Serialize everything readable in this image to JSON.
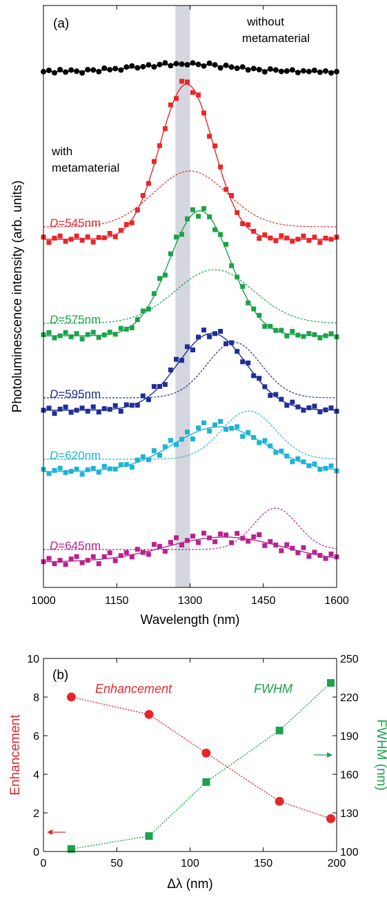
{
  "chart_data": [
    {
      "type": "scatter",
      "panel_label": "(a)",
      "xlabel": "Wavelength (nm)",
      "ylabel": "Photoluminescence intensity (arb. units)",
      "xlim": [
        1000,
        1600
      ],
      "xticks": [
        1000,
        1150,
        1300,
        1450,
        1600
      ],
      "highlight_band": [
        1270,
        1300
      ],
      "annotations": [
        "without",
        "metamaterial",
        "with",
        "metamaterial"
      ],
      "series": [
        {
          "name": "without metamaterial",
          "color": "#000000",
          "marker": "circle",
          "center": 1290,
          "width": 95,
          "peak": 0.22,
          "has_dashed": false,
          "noise_y": [
            0.0,
            0.02,
            -0.02,
            0.03,
            -0.01,
            0.02,
            0.0,
            -0.03,
            0.02,
            0.01,
            -0.02,
            0.03,
            0.0,
            0.01,
            -0.02,
            0.02,
            0.03,
            -0.01,
            0.0,
            0.02,
            -0.02,
            0.01,
            0.03,
            -0.02,
            0.01,
            0.0,
            -0.01,
            0.02,
            0.0,
            -0.02,
            0.03,
            0.01,
            -0.03,
            0.02,
            0.0,
            -0.01,
            0.02,
            -0.02,
            0.01,
            0.0,
            -0.03,
            0.02,
            0.01,
            -0.01,
            0.0,
            0.02,
            -0.02,
            0.01,
            0.0,
            0.02,
            -0.01,
            0.01,
            -0.02,
            0.0
          ]
        },
        {
          "name": "D=545nm",
          "label_prefix": "D",
          "label_value": "=545nm",
          "color": "#e8262a",
          "marker": "square",
          "center": 1293,
          "width": 55,
          "peak": 1.0,
          "dashed_center": 1300,
          "dashed_width": 75,
          "dashed_peak": 0.36,
          "has_dashed": true,
          "noise_y": [
            0.02,
            -0.03,
            0.01,
            0.03,
            -0.02,
            0.0,
            0.03,
            -0.01,
            0.02,
            -0.03,
            0.01,
            0.0,
            0.03,
            -0.02,
            0.01,
            0.02,
            -0.03,
            0.0,
            0.02,
            -0.01,
            0.03,
            0.0,
            -0.02,
            0.04,
            -0.03,
            0.05,
            0.02,
            -0.04,
            0.03,
            0.0,
            -0.05,
            0.04,
            0.02,
            -0.03,
            0.05,
            0.0,
            -0.02,
            0.03,
            0.01,
            -0.03,
            0.02,
            0.0,
            -0.02,
            0.03,
            0.01,
            -0.02,
            0.0,
            0.03,
            -0.01,
            0.02,
            -0.03,
            0.01,
            0.0,
            0.02
          ]
        },
        {
          "name": "D=575nm",
          "label_prefix": "D",
          "label_value": "=575nm",
          "color": "#1aa34a",
          "marker": "square",
          "center": 1320,
          "width": 62,
          "peak": 0.93,
          "dashed_center": 1350,
          "dashed_width": 80,
          "dashed_peak": 0.4,
          "has_dashed": true,
          "noise_y": [
            0.01,
            0.03,
            -0.02,
            0.0,
            0.03,
            -0.01,
            0.02,
            -0.03,
            0.01,
            0.03,
            -0.02,
            0.0,
            0.02,
            -0.01,
            0.03,
            0.0,
            -0.02,
            0.01,
            0.03,
            -0.03,
            0.02,
            0.05,
            -0.04,
            0.03,
            0.06,
            -0.03,
            0.02,
            0.04,
            -0.05,
            0.03,
            0.0,
            -0.04,
            0.02,
            0.05,
            -0.02,
            0.0,
            0.03,
            -0.02,
            0.01,
            0.02,
            -0.03,
            0.01,
            0.0,
            0.02,
            -0.02,
            0.03,
            0.0,
            -0.01,
            0.02,
            0.01,
            -0.02,
            0.0,
            0.02,
            -0.01
          ]
        },
        {
          "name": "D=595nm",
          "label_prefix": "D",
          "label_value": "=595nm",
          "color": "#1f2f96",
          "marker": "square",
          "center": 1345,
          "width": 70,
          "peak": 0.72,
          "dashed_center": 1390,
          "dashed_width": 55,
          "dashed_peak": 0.52,
          "has_dashed": true,
          "noise_y": [
            0.0,
            0.02,
            -0.03,
            0.01,
            0.03,
            -0.02,
            0.0,
            0.02,
            -0.01,
            0.03,
            -0.02,
            0.01,
            0.0,
            0.03,
            -0.03,
            0.02,
            0.0,
            -0.02,
            0.04,
            -0.03,
            0.05,
            0.0,
            -0.04,
            0.03,
            0.06,
            -0.02,
            0.04,
            -0.05,
            0.02,
            0.05,
            -0.03,
            0.0,
            0.04,
            -0.04,
            0.02,
            0.0,
            -0.03,
            0.03,
            -0.02,
            0.02,
            0.0,
            -0.03,
            0.02,
            0.01,
            -0.02,
            0.03,
            0.0,
            -0.02,
            0.01,
            0.03,
            -0.02,
            0.0,
            0.02,
            -0.01
          ]
        },
        {
          "name": "D=620nm",
          "label_prefix": "D",
          "label_value": "=620nm",
          "color": "#1cb4d6",
          "marker": "square",
          "center": 1360,
          "width": 95,
          "peak": 0.52,
          "dashed_center": 1420,
          "dashed_width": 55,
          "dashed_peak": 0.56,
          "has_dashed": true,
          "noise_y": [
            0.02,
            -0.02,
            0.01,
            0.03,
            -0.01,
            0.0,
            0.02,
            -0.03,
            0.01,
            0.02,
            -0.02,
            0.03,
            0.0,
            -0.01,
            0.02,
            0.01,
            -0.03,
            0.02,
            0.03,
            -0.02,
            0.04,
            -0.03,
            0.02,
            0.05,
            -0.02,
            0.0,
            0.04,
            -0.05,
            0.03,
            0.06,
            -0.03,
            0.02,
            0.05,
            -0.02,
            0.0,
            0.03,
            -0.04,
            0.02,
            0.0,
            -0.02,
            0.03,
            0.01,
            -0.02,
            0.02,
            0.0,
            -0.03,
            0.02,
            0.01,
            -0.01,
            0.02,
            -0.02,
            0.0,
            0.03,
            -0.01
          ]
        },
        {
          "name": "D=645nm",
          "label_prefix": "D",
          "label_value": "=645nm",
          "color": "#b8228f",
          "marker": "square",
          "center": 1370,
          "width": 120,
          "peak": 0.36,
          "dashed_center": 1475,
          "dashed_width": 45,
          "dashed_peak": 0.6,
          "has_dashed": true,
          "noise_y": [
            0.0,
            0.03,
            -0.02,
            0.01,
            -0.03,
            0.02,
            0.04,
            -0.02,
            0.0,
            0.03,
            -0.04,
            0.02,
            0.05,
            -0.03,
            0.01,
            0.03,
            -0.02,
            0.04,
            0.0,
            -0.03,
            0.05,
            0.02,
            -0.04,
            0.03,
            0.06,
            -0.02,
            0.01,
            0.04,
            -0.03,
            0.05,
            0.0,
            -0.04,
            0.03,
            0.02,
            -0.05,
            0.04,
            0.0,
            -0.02,
            0.03,
            0.06,
            -0.03,
            0.02,
            0.0,
            -0.04,
            0.03,
            0.01,
            -0.02,
            0.04,
            -0.03,
            0.02,
            0.0,
            -0.02,
            0.03,
            0.01
          ]
        }
      ]
    },
    {
      "type": "line",
      "panel_label": "(b)",
      "xlabel": "Δλ (nm)",
      "ylabel_left": "Enhancement",
      "ylabel_right": "FWHM (nm)",
      "xlim": [
        0,
        200
      ],
      "xticks": [
        0,
        50,
        100,
        150,
        200
      ],
      "ylim_left": [
        0,
        10
      ],
      "yticks_left": [
        0,
        2,
        4,
        6,
        8,
        10
      ],
      "ylim_right": [
        100,
        250
      ],
      "yticks_right": [
        100,
        130,
        160,
        190,
        220,
        250
      ],
      "series": [
        {
          "name": "Enhancement",
          "axis": "left",
          "color": "#e8262a",
          "marker": "circle",
          "x": [
            19,
            72,
            111,
            161,
            196
          ],
          "y": [
            8.0,
            7.1,
            5.1,
            2.6,
            1.7
          ]
        },
        {
          "name": "FWHM",
          "axis": "right",
          "color": "#1aa34a",
          "marker": "square",
          "x": [
            19,
            72,
            111,
            161,
            196
          ],
          "y": [
            102,
            112,
            154,
            194,
            231
          ]
        }
      ]
    }
  ]
}
